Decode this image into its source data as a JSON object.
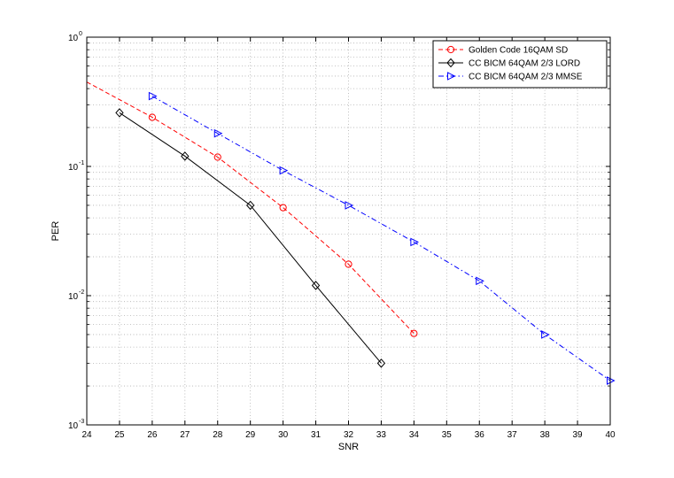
{
  "chart_data": {
    "type": "line",
    "xlabel": "SNR",
    "ylabel": "PER",
    "xlim": [
      24,
      40
    ],
    "ylim": [
      0.001,
      1
    ],
    "yscale": "log",
    "grid": true,
    "legend_position": "top-right",
    "x_ticks": [
      24,
      25,
      26,
      27,
      28,
      29,
      30,
      31,
      32,
      33,
      34,
      35,
      36,
      37,
      38,
      39,
      40
    ],
    "y_ticks": [
      {
        "value": 0.001,
        "base": "10",
        "exp": "-3"
      },
      {
        "value": 0.01,
        "base": "10",
        "exp": "-2"
      },
      {
        "value": 0.1,
        "base": "10",
        "exp": "-1"
      },
      {
        "value": 1,
        "base": "10",
        "exp": "0"
      }
    ],
    "series": [
      {
        "name": "Golden Code 16QAM SD",
        "color": "#ff0000",
        "line_style": "dashed",
        "marker": "circle",
        "x": [
          24,
          26,
          28,
          30,
          32,
          34
        ],
        "y": [
          0.45,
          0.24,
          0.118,
          0.048,
          0.0175,
          0.0051
        ],
        "marker_x": [
          26,
          28,
          30,
          32,
          34
        ]
      },
      {
        "name": "CC BICM 64QAM 2/3 LORD",
        "color": "#000000",
        "line_style": "solid",
        "marker": "diamond",
        "x": [
          25,
          27,
          29,
          31,
          33
        ],
        "y": [
          0.26,
          0.12,
          0.05,
          0.012,
          0.003
        ],
        "marker_x": [
          25,
          27,
          29,
          31,
          33
        ]
      },
      {
        "name": "CC BICM 64QAM 2/3 MMSE",
        "color": "#0000ff",
        "line_style": "dashdot",
        "marker": "triangle-right",
        "x": [
          26,
          28,
          30,
          32,
          34,
          36,
          38,
          40
        ],
        "y": [
          0.35,
          0.18,
          0.093,
          0.05,
          0.026,
          0.013,
          0.005,
          0.0022
        ],
        "marker_x": [
          26,
          28,
          30,
          32,
          34,
          36,
          38,
          40
        ]
      }
    ]
  }
}
